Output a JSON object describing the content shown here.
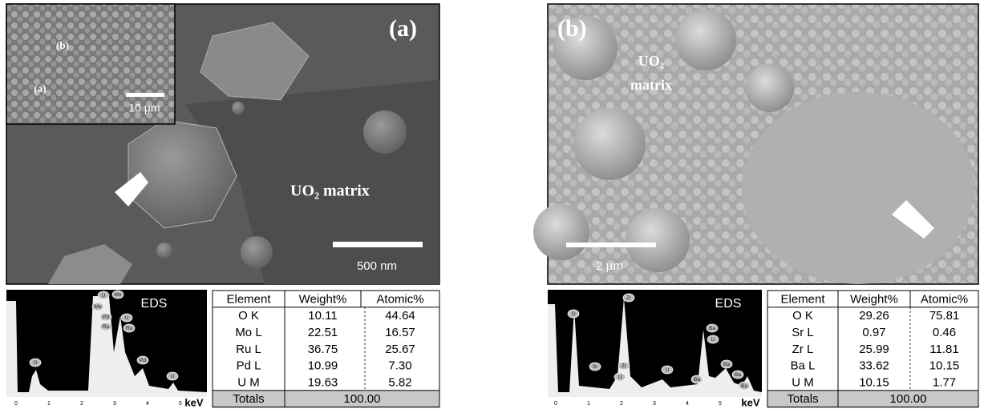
{
  "panels": [
    {
      "label": "(a)",
      "inset": {
        "labels": [
          "(b)",
          "(a)"
        ],
        "scale_bar": "10 µm"
      },
      "annotation": [
        "UO₂ matrix"
      ],
      "scale_bar": "500 nm",
      "eds": {
        "title": "EDS",
        "peaks": [
          "O",
          "U",
          "Mo",
          "Mo",
          "Pd",
          "Ru",
          "U",
          "Ru",
          "Pd",
          "U"
        ],
        "ticks": [
          "0",
          "1",
          "2",
          "3",
          "4",
          "5"
        ],
        "unit": "keV"
      },
      "table": {
        "header": [
          "Element",
          "Weight%",
          "Atomic%"
        ],
        "rows": [
          [
            "O K",
            "10.11",
            "44.64"
          ],
          [
            "Mo L",
            "22.51",
            "16.57"
          ],
          [
            "Ru L",
            "36.75",
            "25.67"
          ],
          [
            "Pd L",
            "10.99",
            "7.30"
          ],
          [
            "U M",
            "19.63",
            "5.82"
          ]
        ],
        "totals": [
          "Totals",
          "100.00"
        ]
      }
    },
    {
      "label": "(b)",
      "annotation": [
        "UO₂",
        "matrix"
      ],
      "scale_bar": "2 µm",
      "eds": {
        "title": "EDS",
        "peaks": [
          "O",
          "Zr",
          "Sr",
          "Zr",
          "U",
          "U",
          "Ba",
          "U",
          "Ba",
          "Ba",
          "Ba",
          "Ba"
        ],
        "ticks": [
          "0",
          "1",
          "2",
          "3",
          "4",
          "5"
        ],
        "unit": "keV"
      },
      "table": {
        "header": [
          "Element",
          "Weight%",
          "Atomic%"
        ],
        "rows": [
          [
            "O K",
            "29.26",
            "75.81"
          ],
          [
            "Sr L",
            "0.97",
            "0.46"
          ],
          [
            "Zr L",
            "25.99",
            "11.81"
          ],
          [
            "Ba L",
            "33.62",
            "10.15"
          ],
          [
            "U M",
            "10.15",
            "1.77"
          ]
        ],
        "totals": [
          "Totals",
          "100.00"
        ]
      }
    }
  ]
}
